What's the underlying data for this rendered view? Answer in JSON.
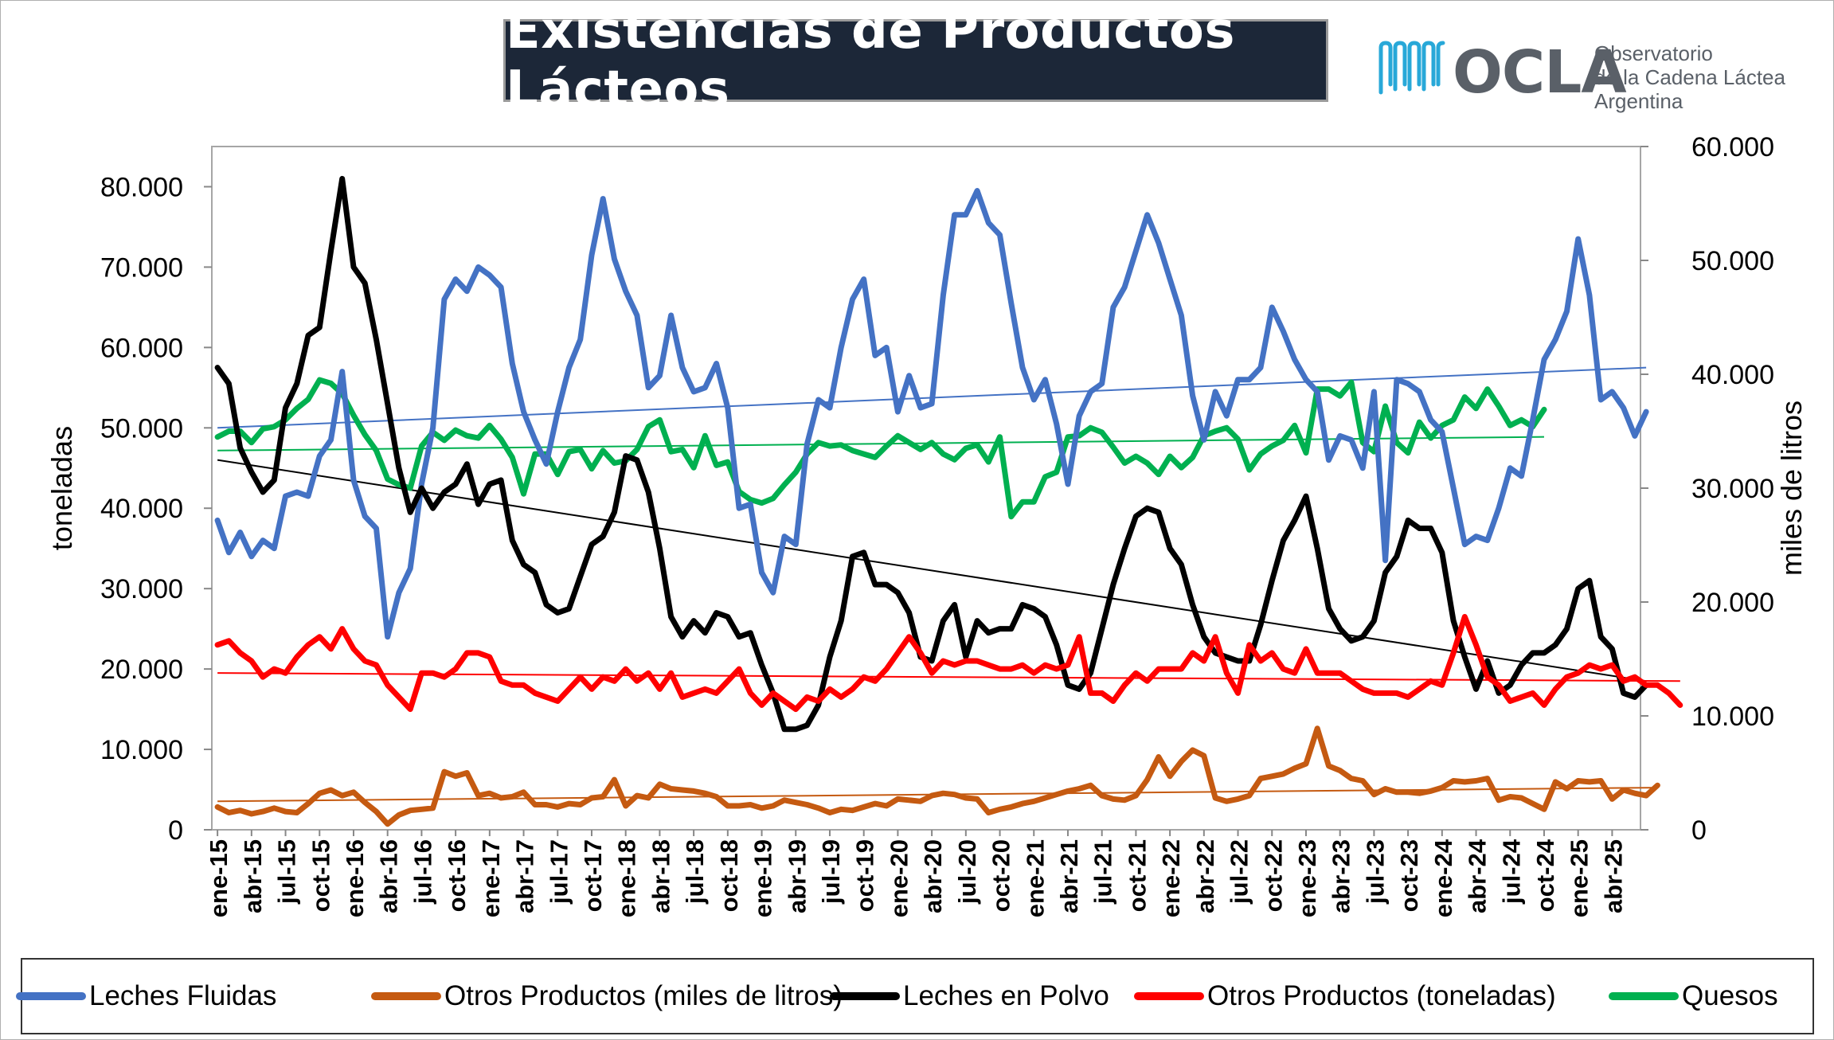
{
  "title": "Existencias de Productos Lácteos",
  "logo": {
    "name": "OCLA",
    "line1": "Observatorio",
    "line2": "de la Cadena Láctea",
    "line3": "Argentina",
    "color": "#28a8d8"
  },
  "chart_data": {
    "type": "line",
    "title": "Existencias de Productos Lácteos",
    "ylabel": "toneladas",
    "y2label": "miles de litros",
    "ylim": [
      0,
      85000
    ],
    "y2lim": [
      0,
      60000
    ],
    "yticks": [
      "0",
      "10.000",
      "20.000",
      "30.000",
      "40.000",
      "50.000",
      "60.000",
      "70.000",
      "80.000"
    ],
    "y2ticks": [
      "0",
      "10.000",
      "20.000",
      "30.000",
      "40.000",
      "50.000",
      "60.000"
    ],
    "xticklabels": [
      "ene-15",
      "abr-15",
      "jul-15",
      "oct-15",
      "ene-16",
      "abr-16",
      "jul-16",
      "oct-16",
      "ene-17",
      "abr-17",
      "jul-17",
      "oct-17",
      "ene-18",
      "abr-18",
      "jul-18",
      "oct-18",
      "ene-19",
      "abr-19",
      "jul-19",
      "oct-19",
      "ene-20",
      "abr-20",
      "jul-20",
      "oct-20",
      "ene-21",
      "abr-21",
      "jul-21",
      "oct-21",
      "ene-22",
      "abr-22",
      "jul-22",
      "oct-22",
      "ene-23",
      "abr-23",
      "jul-23",
      "oct-23",
      "ene-24",
      "abr-24",
      "jul-24",
      "oct-24",
      "ene-25",
      "abr-25"
    ],
    "grid": false,
    "legend": "bottom",
    "series": [
      {
        "name": "Leches Fluidas",
        "axis": "left",
        "color": "#4472c4",
        "values": [
          38500,
          34500,
          37000,
          34000,
          36000,
          35000,
          41500,
          42000,
          41500,
          46500,
          48500,
          57000,
          43500,
          39000,
          37500,
          24000,
          29500,
          32500,
          43000,
          50000,
          66000,
          68500,
          67000,
          70000,
          69000,
          67500,
          58000,
          52000,
          48500,
          45500,
          52000,
          57500,
          61000,
          71500,
          78500,
          71000,
          67000,
          64000,
          55000,
          56500,
          64000,
          57500,
          54500,
          55000,
          58000,
          52500,
          40000,
          40500,
          32000,
          29500,
          36500,
          35500,
          48000,
          53500,
          52500,
          60000,
          66000,
          68500,
          59000,
          60000,
          52000,
          56500,
          52500,
          53000,
          66500,
          76500,
          76500,
          79500,
          75500,
          74000,
          65500,
          57500,
          53500,
          56000,
          50500,
          43000,
          51500,
          54500,
          55500,
          65000,
          67500,
          72000,
          76500,
          73000,
          68500,
          64000,
          54000,
          48500,
          54500,
          51500,
          56000,
          56000,
          57500,
          65000,
          62000,
          58500,
          56000,
          54500,
          46000,
          49000,
          48500,
          45000,
          54500,
          33500,
          56000,
          55500,
          54500,
          51000,
          49500,
          42500,
          35500,
          36500,
          36000,
          40000,
          45000,
          44000,
          51000,
          58500,
          61000,
          64500,
          73500,
          66500,
          53500,
          54500,
          52500,
          49000,
          52000
        ],
        "trend": [
          50000,
          57500
        ]
      },
      {
        "name": "Otros Productos (miles de litros)",
        "axis": "right",
        "color": "#c55a11",
        "values": [
          2000,
          1500,
          1700,
          1400,
          1600,
          1900,
          1600,
          1500,
          2300,
          3200,
          3500,
          3000,
          3300,
          2400,
          1600,
          500,
          1300,
          1700,
          1800,
          1900,
          5100,
          4700,
          5000,
          3000,
          3200,
          2800,
          2900,
          3300,
          2200,
          2200,
          2000,
          2300,
          2200,
          2800,
          2900,
          4400,
          2100,
          3000,
          2800,
          4000,
          3600,
          3500,
          3400,
          3200,
          2900,
          2100,
          2100,
          2200,
          1900,
          2100,
          2600,
          2400,
          2200,
          1900,
          1500,
          1800,
          1700,
          2000,
          2300,
          2100,
          2700,
          2600,
          2500,
          3000,
          3200,
          3100,
          2800,
          2700,
          1500,
          1800,
          2000,
          2300,
          2500,
          2800,
          3100,
          3400,
          3600,
          3900,
          3000,
          2700,
          2600,
          3000,
          4400,
          6400,
          4700,
          6000,
          7000,
          6500,
          2800,
          2500,
          2700,
          3000,
          4500,
          4700,
          4900,
          5400,
          5800,
          8900,
          5600,
          5200,
          4500,
          4300,
          3100,
          3600,
          3300,
          3300,
          3200,
          3400,
          3700,
          4300,
          4200,
          4300,
          4500,
          2600,
          2900,
          2800,
          2300,
          1800,
          4200,
          3600,
          4300,
          4200,
          4300,
          2700,
          3500,
          3200,
          3000,
          3900
        ],
        "trend": [
          2500,
          3700
        ]
      },
      {
        "name": "Leches en Polvo",
        "axis": "left",
        "color": "#000000",
        "values": [
          57500,
          55500,
          47500,
          44500,
          42000,
          43500,
          52500,
          55500,
          61500,
          62500,
          72000,
          81000,
          70000,
          68000,
          61000,
          53000,
          45000,
          39500,
          42500,
          40000,
          42000,
          43000,
          45500,
          40500,
          43000,
          43500,
          36000,
          33000,
          32000,
          28000,
          27000,
          27500,
          31500,
          35500,
          36500,
          39500,
          46500,
          46000,
          42000,
          35000,
          26500,
          24000,
          26000,
          24500,
          27000,
          26500,
          24000,
          24500,
          20500,
          17000,
          12500,
          12500,
          13000,
          15500,
          21500,
          26000,
          34000,
          34500,
          30500,
          30500,
          29500,
          27000,
          21500,
          21000,
          26000,
          28000,
          21500,
          26000,
          24500,
          25000,
          25000,
          28000,
          27500,
          26500,
          23000,
          18000,
          17500,
          19500,
          25000,
          30500,
          35000,
          39000,
          40000,
          39500,
          35000,
          33000,
          28000,
          24000,
          22000,
          21500,
          21000,
          21000,
          25500,
          31000,
          36000,
          38500,
          41500,
          35000,
          27500,
          25000,
          23500,
          24000,
          26000,
          32000,
          34000,
          38500,
          37500,
          37500,
          34500,
          26000,
          21500,
          17500,
          21000,
          17000,
          18000,
          20500,
          22000,
          22000,
          23000,
          25000,
          30000,
          31000,
          24000,
          22500,
          17000,
          16500,
          18000
        ],
        "trend": [
          46000,
          18500
        ]
      },
      {
        "name": "Otros Productos (toneladas)",
        "axis": "left",
        "color": "#ff0000",
        "values": [
          23000,
          23500,
          22000,
          21000,
          19000,
          20000,
          19500,
          21500,
          23000,
          24000,
          22500,
          25000,
          22500,
          21000,
          20500,
          18000,
          16500,
          15000,
          19500,
          19500,
          19000,
          20000,
          22000,
          22000,
          21500,
          18500,
          18000,
          18000,
          17000,
          16500,
          16000,
          17500,
          19000,
          17500,
          19000,
          18500,
          20000,
          18500,
          19500,
          17500,
          19500,
          16500,
          17000,
          17500,
          17000,
          18500,
          20000,
          17000,
          15500,
          17000,
          16000,
          15000,
          16500,
          16000,
          17500,
          16500,
          17500,
          19000,
          18500,
          20000,
          22000,
          24000,
          22000,
          19500,
          21000,
          20500,
          21000,
          21000,
          20500,
          20000,
          20000,
          20500,
          19500,
          20500,
          20000,
          20500,
          24000,
          17000,
          17000,
          16000,
          18000,
          19500,
          18500,
          20000,
          20000,
          20000,
          22000,
          21000,
          24000,
          19500,
          17000,
          23000,
          21000,
          22000,
          20000,
          19500,
          22500,
          19500,
          19500,
          19500,
          18500,
          17500,
          17000,
          17000,
          17000,
          16500,
          17500,
          18500,
          18000,
          22000,
          26500,
          23000,
          19000,
          18000,
          16000,
          16500,
          17000,
          15500,
          17500,
          19000,
          19500,
          20500,
          20000,
          20500,
          18500,
          19000,
          18000,
          18000,
          17000,
          15500
        ],
        "trend": [
          19500,
          18500
        ]
      },
      {
        "name": "Quesos",
        "axis": "right",
        "color": "#00b050",
        "values": [
          34500,
          35000,
          35000,
          34000,
          35200,
          35400,
          36000,
          37000,
          37800,
          39500,
          39200,
          38300,
          36400,
          34700,
          33300,
          30800,
          30300,
          30000,
          33700,
          34900,
          34200,
          35100,
          34600,
          34400,
          35500,
          34300,
          32700,
          29500,
          33000,
          33000,
          31200,
          33200,
          33400,
          31700,
          33300,
          32200,
          32400,
          33400,
          35400,
          36000,
          33200,
          33400,
          31800,
          34600,
          32000,
          32300,
          29700,
          29000,
          28700,
          29100,
          30300,
          31400,
          33000,
          34000,
          33700,
          33800,
          33300,
          33000,
          32700,
          33700,
          34600,
          34000,
          33400,
          34000,
          33000,
          32500,
          33500,
          33800,
          32300,
          34500,
          27500,
          28800,
          28800,
          31000,
          31400,
          34500,
          34600,
          35300,
          34900,
          33600,
          32200,
          32800,
          32200,
          31200,
          32800,
          31800,
          32700,
          34600,
          35000,
          35300,
          34300,
          31600,
          33000,
          33700,
          34200,
          35500,
          33100,
          38700,
          38700,
          38100,
          39300,
          34000,
          33200,
          37200,
          34000,
          33100,
          35800,
          34400,
          35500,
          36000,
          38000,
          37000,
          38700,
          37200,
          35500,
          36000,
          35400,
          36900
        ],
        "trend": [
          33300,
          34500
        ]
      }
    ]
  }
}
